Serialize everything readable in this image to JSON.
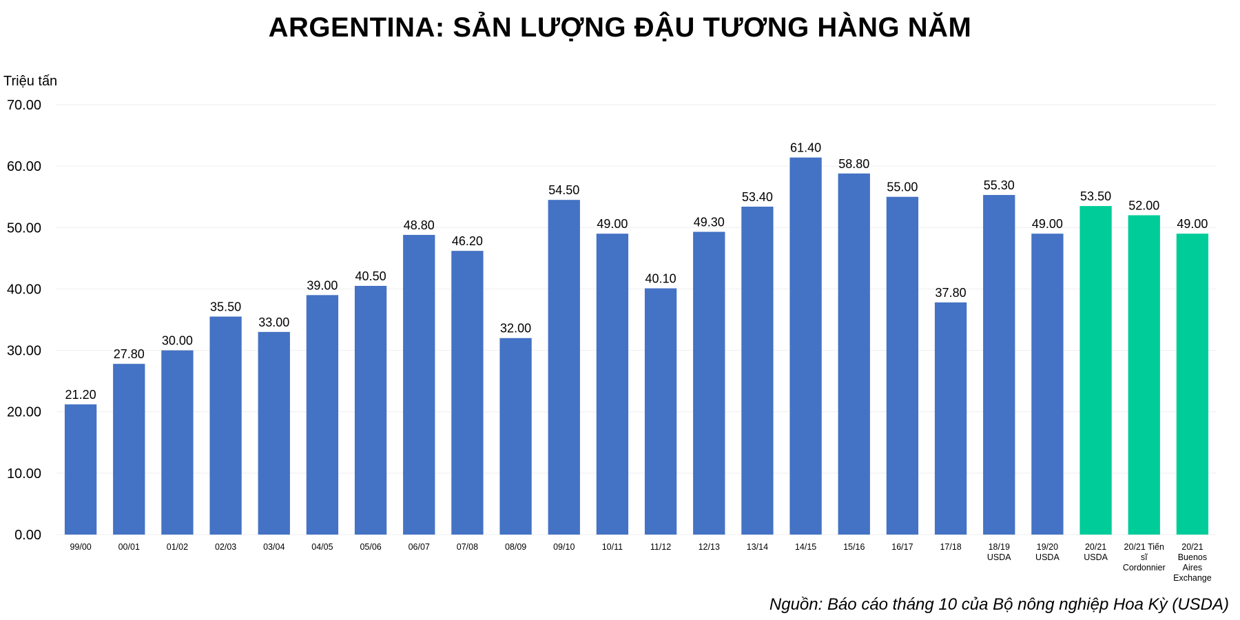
{
  "chart_data": {
    "type": "bar",
    "title": "ARGENTINA: SẢN LƯỢNG ĐẬU TƯƠNG HÀNG NĂM",
    "ylabel": "Triệu tấn",
    "xlabel": "",
    "ylim": [
      0,
      70
    ],
    "yticks": [
      "0.00",
      "10.00",
      "20.00",
      "30.00",
      "40.00",
      "50.00",
      "60.00",
      "70.00"
    ],
    "grid": true,
    "legend": "none",
    "colors": {
      "actual": "#4472C4",
      "forecast": "#00CC99",
      "grid": "#eeeeee"
    },
    "categories": [
      "99/00",
      "00/01",
      "01/02",
      "02/03",
      "03/04",
      "04/05",
      "05/06",
      "06/07",
      "07/08",
      "08/09",
      "09/10",
      "10/11",
      "11/12",
      "12/13",
      "13/14",
      "14/15",
      "15/16",
      "16/17",
      "17/18",
      "18/19 USDA",
      "19/20 USDA",
      "20/21 USDA",
      "20/21 Tiến sĩ Cordonnier",
      "20/21 Buenos Aires Exchange"
    ],
    "category_lines": [
      [
        "99/00"
      ],
      [
        "00/01"
      ],
      [
        "01/02"
      ],
      [
        "02/03"
      ],
      [
        "03/04"
      ],
      [
        "04/05"
      ],
      [
        "05/06"
      ],
      [
        "06/07"
      ],
      [
        "07/08"
      ],
      [
        "08/09"
      ],
      [
        "09/10"
      ],
      [
        "10/11"
      ],
      [
        "11/12"
      ],
      [
        "12/13"
      ],
      [
        "13/14"
      ],
      [
        "14/15"
      ],
      [
        "15/16"
      ],
      [
        "16/17"
      ],
      [
        "17/18"
      ],
      [
        "18/19",
        "USDA"
      ],
      [
        "19/20",
        "USDA"
      ],
      [
        "20/21",
        "USDA"
      ],
      [
        "20/21 Tiến",
        "sĩ",
        "Cordonnier"
      ],
      [
        "20/21",
        "Buenos",
        "Aires",
        "Exchange"
      ]
    ],
    "values": [
      21.2,
      27.8,
      30.0,
      35.5,
      33.0,
      39.0,
      40.5,
      48.8,
      46.2,
      32.0,
      54.5,
      49.0,
      40.1,
      49.3,
      53.4,
      61.4,
      58.8,
      55.0,
      37.8,
      55.3,
      49.0,
      53.5,
      52.0,
      49.0
    ],
    "value_labels": [
      "21.20",
      "27.80",
      "30.00",
      "35.50",
      "33.00",
      "39.00",
      "40.50",
      "48.80",
      "46.20",
      "32.00",
      "54.50",
      "49.00",
      "40.10",
      "49.30",
      "53.40",
      "61.40",
      "58.80",
      "55.00",
      "37.80",
      "55.30",
      "49.00",
      "53.50",
      "52.00",
      "49.00"
    ],
    "bar_color_group": [
      "actual",
      "actual",
      "actual",
      "actual",
      "actual",
      "actual",
      "actual",
      "actual",
      "actual",
      "actual",
      "actual",
      "actual",
      "actual",
      "actual",
      "actual",
      "actual",
      "actual",
      "actual",
      "actual",
      "actual",
      "actual",
      "forecast",
      "forecast",
      "forecast"
    ]
  },
  "source_note": "Nguồn: Báo cáo tháng 10 của Bộ nông nghiệp Hoa Kỳ (USDA)"
}
